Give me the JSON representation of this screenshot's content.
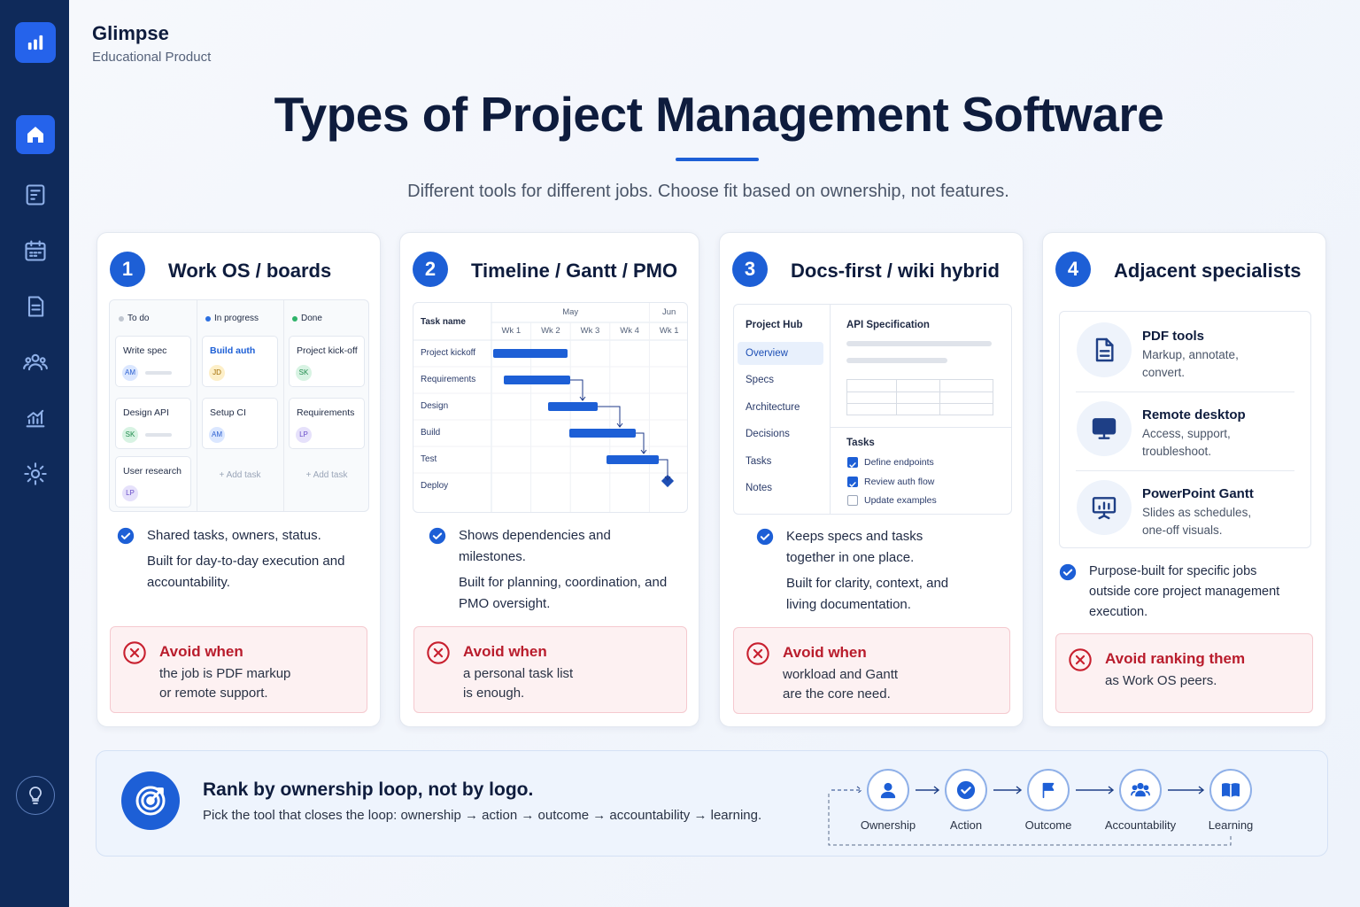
{
  "brand": {
    "name": "Glimpse",
    "tagline": "Educational Product"
  },
  "header": {
    "title": "Types of Project Management Software",
    "subtitle": "Different tools for different jobs. Choose fit based on ownership, not features."
  },
  "cards": [
    {
      "number": "1",
      "title": "Work OS / boards",
      "board": {
        "columns": [
          {
            "name": "To do",
            "tasks": [
              {
                "name": "Write spec",
                "owner": "AM"
              },
              {
                "name": "Design API",
                "owner": "SK"
              },
              {
                "name": "User research",
                "owner": "LP"
              }
            ]
          },
          {
            "name": "In progress",
            "tasks": [
              {
                "name": "Build auth",
                "owner": "JD"
              },
              {
                "name": "Setup CI",
                "owner": "AM"
              }
            ],
            "add_label": "+ Add task"
          },
          {
            "name": "Done",
            "tasks": [
              {
                "name": "Project kick-off",
                "owner": "SK"
              },
              {
                "name": "Requirements",
                "owner": "LP"
              }
            ],
            "add_label": "+ Add task"
          }
        ]
      },
      "points": [
        "Shared tasks, owners, status.",
        "Built for day-to-day execution and accountability."
      ],
      "avoid": {
        "title": "Avoid when",
        "text": "the job is PDF markup or remote support."
      }
    },
    {
      "number": "2",
      "title": "Timeline / Gantt / PMO",
      "gantt": {
        "header": "Task name",
        "months": [
          "May",
          "Jun"
        ],
        "weeks": [
          "Wk 1",
          "Wk 2",
          "Wk 3",
          "Wk 4",
          "Wk 1"
        ],
        "tasks": [
          "Project kickoff",
          "Requirements",
          "Design",
          "Build",
          "Test",
          "Deploy"
        ]
      },
      "points": [
        "Shows dependencies and milestones.",
        "Built for planning, coordination, and PMO oversight."
      ],
      "avoid": {
        "title": "Avoid when",
        "text": "a personal task list is enough."
      }
    },
    {
      "number": "3",
      "title": "Docs-first / wiki hybrid",
      "docs": {
        "hub": "Project Hub",
        "nav": [
          "Overview",
          "Specs",
          "Architecture",
          "Decisions",
          "Tasks",
          "Notes"
        ],
        "page_title": "API Specification",
        "tasks_title": "Tasks",
        "checklist": [
          {
            "label": "Define endpoints",
            "checked": true
          },
          {
            "label": "Review auth flow",
            "checked": true
          },
          {
            "label": "Update examples",
            "checked": false
          }
        ]
      },
      "points": [
        "Keeps specs and tasks together in one place.",
        "Built for clarity, context, and living documentation."
      ],
      "avoid": {
        "title": "Avoid when",
        "text": "workload and Gantt are the core need."
      }
    },
    {
      "number": "4",
      "title": "Adjacent specialists",
      "specialists": [
        {
          "name": "PDF tools",
          "description": "Markup, annotate, convert."
        },
        {
          "name": "Remote desktop",
          "description": "Access, support, troubleshoot."
        },
        {
          "name": "PowerPoint Gantt",
          "description": "Slides as schedules, one-off visuals."
        }
      ],
      "points": [
        "Purpose-built for specific jobs outside core project management execution."
      ],
      "avoid": {
        "title": "Avoid ranking them",
        "text": "as Work OS peers."
      }
    }
  ],
  "footer": {
    "title": "Rank by ownership loop, not by logo.",
    "text": "Pick the tool that closes the loop: ownership → action → outcome → accountability → learning.",
    "steps": [
      "Ownership",
      "Action",
      "Outcome",
      "Accountability",
      "Learning"
    ]
  }
}
